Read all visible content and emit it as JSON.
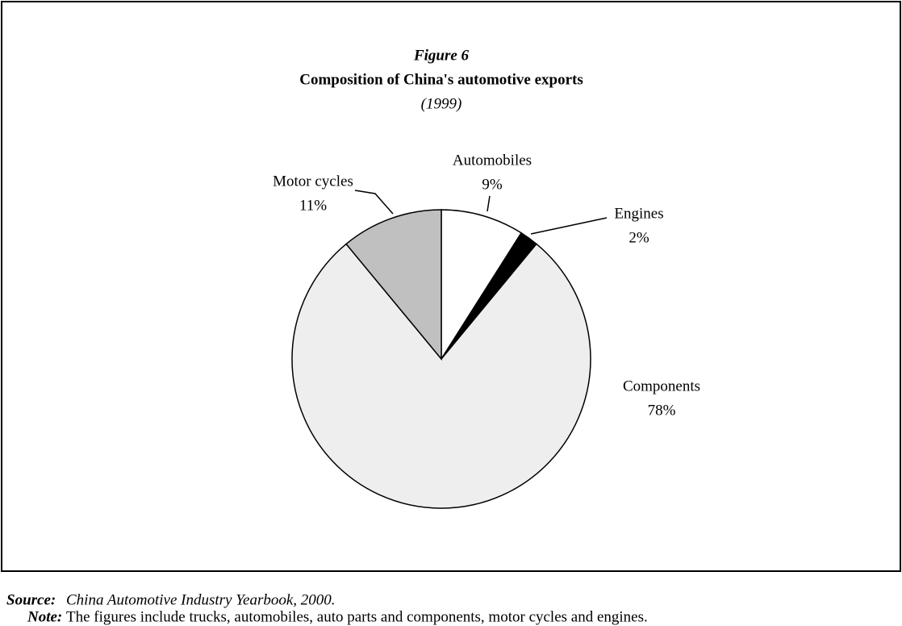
{
  "chart_data": {
    "type": "pie",
    "figure_label": "Figure 6",
    "title": "Composition of China's automotive exports",
    "subtitle": "(1999)",
    "categories": [
      "Automobiles",
      "Engines",
      "Components",
      "Motor cycles"
    ],
    "values": [
      9,
      2,
      78,
      11
    ],
    "value_labels": [
      "9%",
      "2%",
      "78%",
      "11%"
    ],
    "colors": [
      "#ffffff",
      "#000000",
      "#eeeeee",
      "#c0c0c0"
    ]
  },
  "source": {
    "label": "Source:",
    "text": "China Automotive Industry Yearbook, 2000."
  },
  "note": {
    "label": "Note:",
    "text": "The figures include trucks, automobiles, auto parts and components, motor cycles and engines."
  }
}
